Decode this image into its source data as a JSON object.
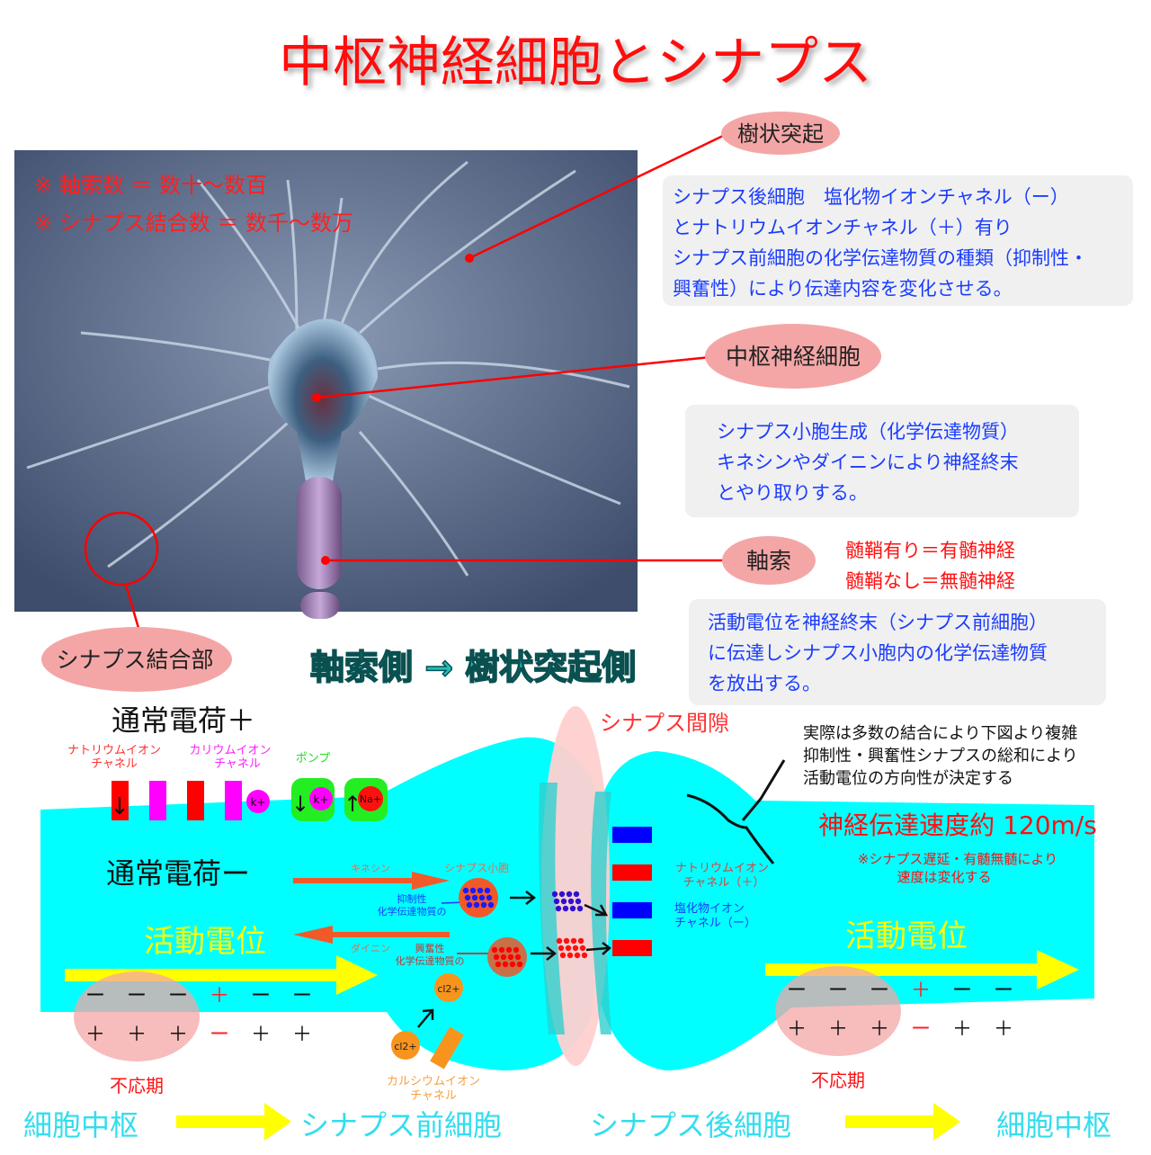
{
  "title": "中枢神経細胞とシナプス",
  "photo": {
    "notes": [
      "※ 軸索数 ＝ 数十〜数百",
      "※ シナプス結合数 ＝ 数千〜数万"
    ]
  },
  "callouts": {
    "dendrite": "樹状突起",
    "neuron": "中枢神経細胞",
    "axon": "軸索",
    "synapse_junction": "シナプス結合部"
  },
  "info_boxes": [
    [
      "シナプス後細胞　塩化物イオンチャネル（ー）",
      "とナトリウムイオンチャネル（＋）有り",
      "シナプス前細胞の化学伝達物質の種類（抑制性・",
      "興奮性）により伝達内容を変化させる。"
    ],
    [
      "シナプス小胞生成（化学伝達物質）",
      "キネシンやダイニンにより神経終末",
      "とやり取りする。"
    ],
    [
      "活動電位を神経終末（シナプス前細胞）",
      "に伝達しシナプス小胞内の化学伝達物質",
      "を放出する。"
    ]
  ],
  "myelin": [
    "髄鞘有り＝有髄神経",
    "髄鞘なし＝無髄神経"
  ],
  "direction": "軸索側 → 樹状突起側",
  "diagram": {
    "cleft": "シナプス間隙",
    "normal_plus": "通常電荷＋",
    "normal_minus": "通常電荷ー",
    "na_channel": [
      "ナトリウムイオン",
      "チャネル"
    ],
    "k_channel": [
      "カリウムイオン",
      "チャネル"
    ],
    "pump": "ポンプ",
    "k_ion": "k+",
    "na_ion": "Na+",
    "action_potential": "活動電位",
    "kinesin": "キネシン",
    "dynein": "ダイニン",
    "vesicle": "シナプス小胞",
    "inhibitory": [
      "抑制性",
      "化学伝達物質の"
    ],
    "excitatory": [
      "興奮性",
      "化学伝達物質の"
    ],
    "ca_ion": "cl2+",
    "ca_channel": [
      "カルシウムイオン",
      "チャネル"
    ],
    "post_na": [
      "ナトリウムイオン",
      "チャネル（＋）"
    ],
    "post_cl": [
      "塩化物イオン",
      "チャネル（ー）"
    ],
    "note": [
      "実際は多数の結合により下図より複雑",
      "抑制性・興奮性シナプスの総和により",
      "活動電位の方向性が決定する"
    ],
    "speed": "神経伝達速度約 120m/s",
    "speed_note": [
      "※シナプス遅延・有髄無髄により",
      "速度は変化する"
    ],
    "charges_top": [
      "ー",
      "ー",
      "ー",
      "＋",
      "ー",
      "ー"
    ],
    "charges_bottom": [
      "＋",
      "＋",
      "＋",
      "ー",
      "＋",
      "＋"
    ],
    "refractory": "不応期"
  },
  "footer": [
    "細胞中枢",
    "シナプス前細胞",
    "シナプス後細胞",
    "細胞中枢"
  ],
  "colors": {
    "cyan": "#00ffff",
    "red": "#ff0000",
    "magenta": "#ff00ff",
    "green": "#00ee00",
    "yellow": "#ffff00",
    "pink": "#f4a6a6",
    "box": "#f0f0f0",
    "blue_text": "#1a3cff"
  }
}
